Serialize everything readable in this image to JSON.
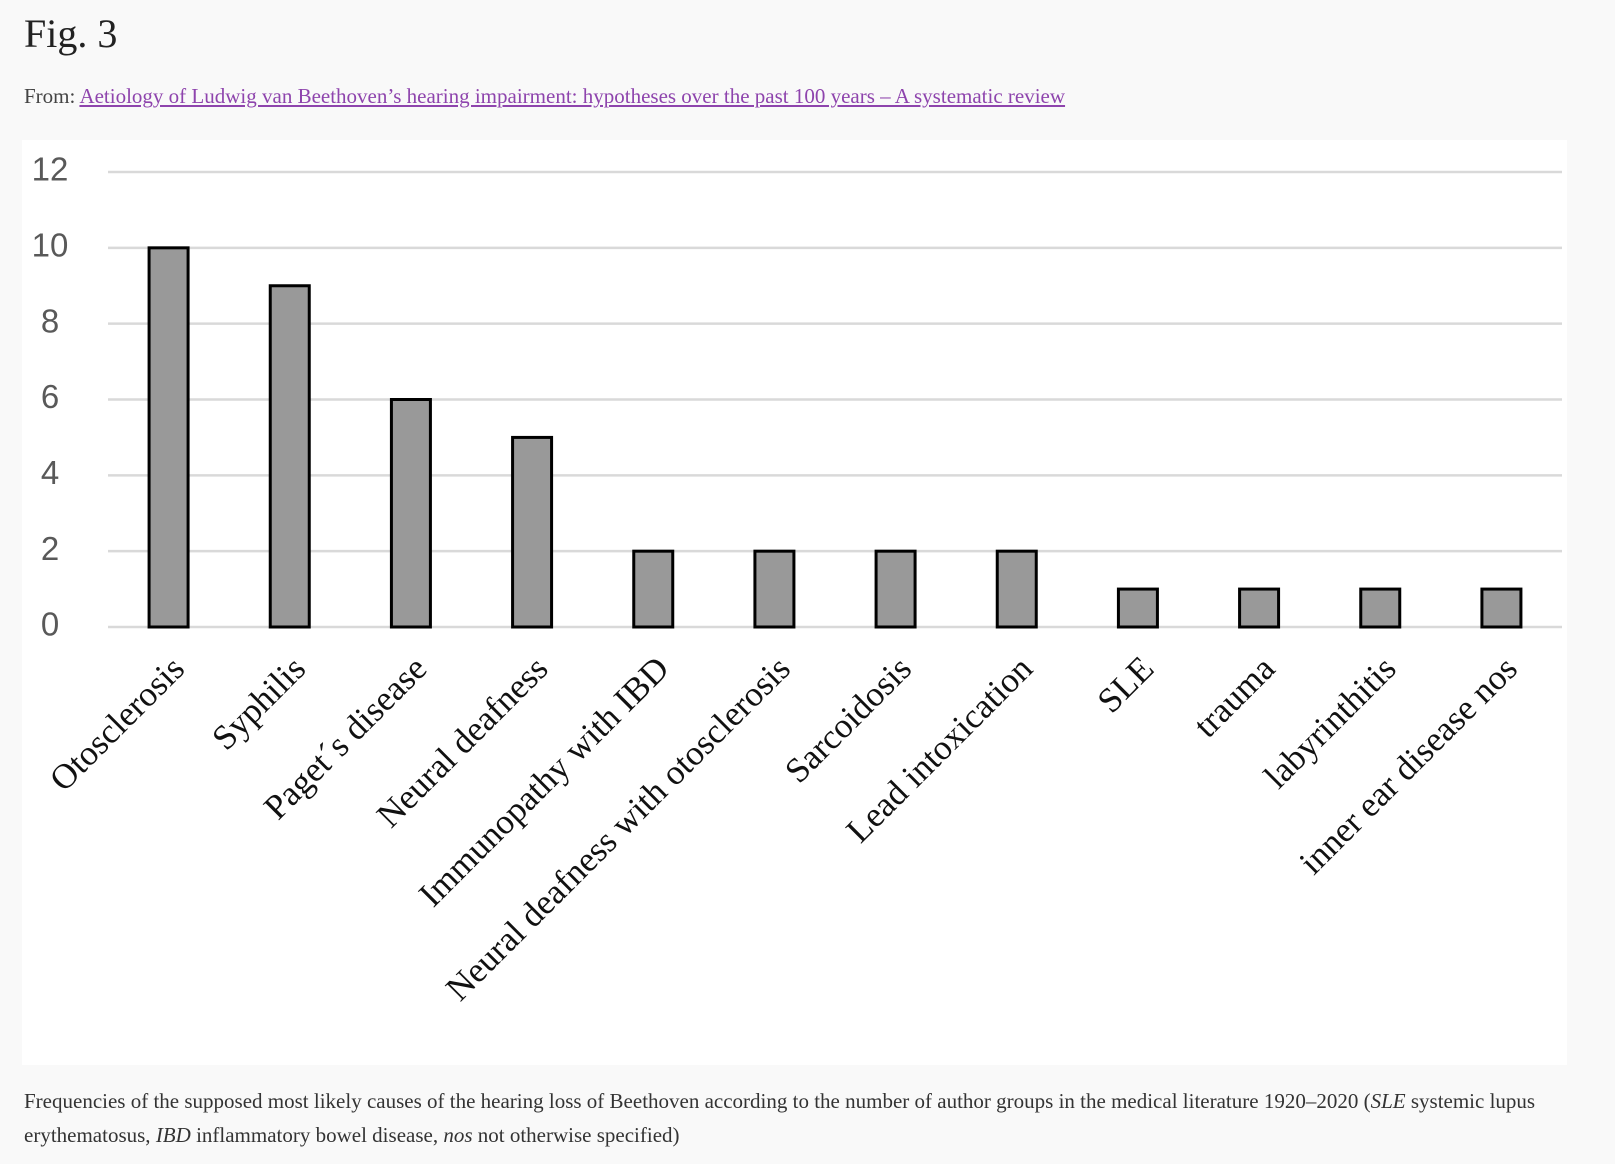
{
  "header": {
    "title": "Fig. 3",
    "from_label": "From:",
    "link": "Aetiology of Ludwig van Beethoven’s hearing impairment: hypotheses over the past 100 years – A systematic review"
  },
  "chart_data": {
    "type": "bar",
    "categories": [
      "Otosclerosis",
      "Syphilis",
      "Paget´s disease",
      "Neural deafness",
      "Immunopathy with IBD",
      "Neural deafness with otosclerosis",
      "Sarcoidosis",
      "Lead intoxication",
      "SLE",
      "trauma",
      "labyrinthitis",
      "inner ear disease nos"
    ],
    "values": [
      10,
      9,
      6,
      5,
      2,
      2,
      2,
      2,
      1,
      1,
      1,
      1
    ],
    "color": "#999999",
    "ylim": [
      0,
      12
    ],
    "yticks": [
      0,
      2,
      4,
      6,
      8,
      10,
      12
    ],
    "grid": true
  },
  "caption": [
    "Frequencies of the supposed most likely causes of the hearing loss of Beethoven according to the number of author groups in the medical literature 1920–2020 (",
    "SLE",
    " systemic lupus erythematosus, ",
    "IBD",
    " inflammatory bowel disease, ",
    "nos",
    " not otherwise specified)"
  ]
}
